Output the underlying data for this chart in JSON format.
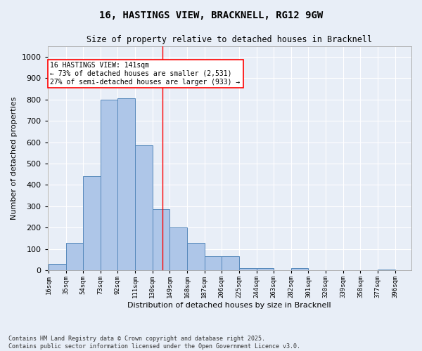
{
  "title": "16, HASTINGS VIEW, BRACKNELL, RG12 9GW",
  "subtitle": "Size of property relative to detached houses in Bracknell",
  "xlabel": "Distribution of detached houses by size in Bracknell",
  "ylabel": "Number of detached properties",
  "categories": [
    "16sqm",
    "35sqm",
    "54sqm",
    "73sqm",
    "92sqm",
    "111sqm",
    "130sqm",
    "149sqm",
    "168sqm",
    "187sqm",
    "206sqm",
    "225sqm",
    "244sqm",
    "263sqm",
    "282sqm",
    "301sqm",
    "320sqm",
    "339sqm",
    "358sqm",
    "377sqm",
    "396sqm"
  ],
  "bin_edges": [
    16,
    35,
    54,
    73,
    92,
    111,
    130,
    149,
    168,
    187,
    206,
    225,
    244,
    263,
    282,
    301,
    320,
    339,
    358,
    377,
    396
  ],
  "values": [
    30,
    130,
    440,
    800,
    805,
    585,
    285,
    200,
    130,
    65,
    65,
    10,
    10,
    0,
    10,
    0,
    0,
    0,
    0,
    5
  ],
  "bar_color": "#aec6e8",
  "bar_edge_color": "#5588bb",
  "background_color": "#e8eef7",
  "grid_color": "#ffffff",
  "vline_x": 141,
  "vline_color": "red",
  "annotation_text": "16 HASTINGS VIEW: 141sqm\n← 73% of detached houses are smaller (2,531)\n27% of semi-detached houses are larger (933) →",
  "annotation_box_color": "white",
  "annotation_box_edge_color": "red",
  "ylim": [
    0,
    1050
  ],
  "yticks": [
    0,
    100,
    200,
    300,
    400,
    500,
    600,
    700,
    800,
    900,
    1000
  ],
  "footnote": "Contains HM Land Registry data © Crown copyright and database right 2025.\nContains public sector information licensed under the Open Government Licence v3.0."
}
